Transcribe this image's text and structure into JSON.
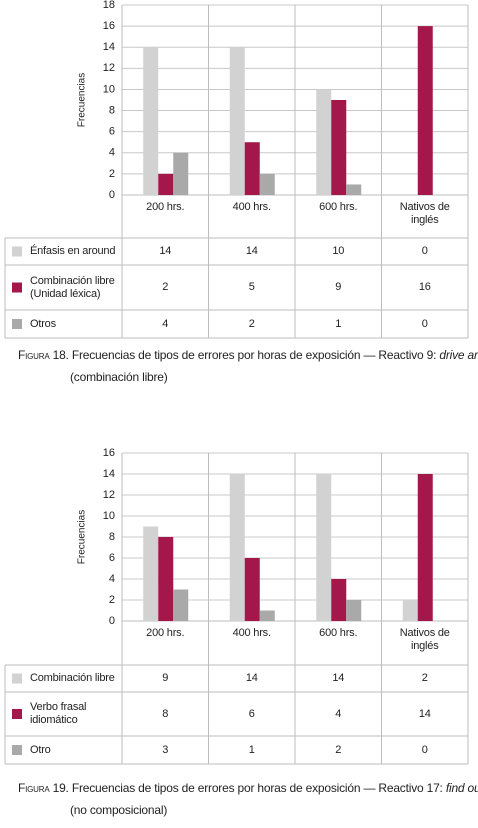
{
  "chart_data": [
    {
      "type": "bar",
      "y_label": "Frecuencias",
      "categories": [
        "200 hrs.",
        "400 hrs.",
        "600 hrs.",
        "Nativos de inglés"
      ],
      "series": [
        {
          "name": "Énfasis en around",
          "color": "#d2d2d2",
          "values": [
            14,
            14,
            10,
            0
          ]
        },
        {
          "name": "Combinación libre (Unidad léxica)",
          "color": "#a3174a",
          "values": [
            2,
            5,
            9,
            16
          ]
        },
        {
          "name": "Otros",
          "color": "#a9a9a9",
          "values": [
            4,
            2,
            1,
            0
          ]
        }
      ],
      "ylim": [
        0,
        18
      ],
      "yticks": [
        0,
        2,
        4,
        6,
        8,
        10,
        12,
        14,
        16,
        18
      ],
      "grid": true,
      "caption_label": "Figura 18.",
      "caption_text": "Frecuencias de tipos de errores por horas de exposición — Reactivo 9:",
      "caption_emph": "drive around",
      "caption_end": "(combinación libre)"
    },
    {
      "type": "bar",
      "y_label": "Frecuencias",
      "categories": [
        "200 hrs.",
        "400 hrs.",
        "600 hrs.",
        "Nativos de inglés"
      ],
      "series": [
        {
          "name": "Combinación libre",
          "color": "#d2d2d2",
          "values": [
            9,
            14,
            14,
            2
          ]
        },
        {
          "name": "Verbo frasal idiomático",
          "color": "#a3174a",
          "values": [
            8,
            6,
            4,
            14
          ]
        },
        {
          "name": "Otro",
          "color": "#a9a9a9",
          "values": [
            3,
            1,
            2,
            0
          ]
        }
      ],
      "ylim": [
        0,
        16
      ],
      "yticks": [
        0,
        2,
        4,
        6,
        8,
        10,
        12,
        14,
        16
      ],
      "grid": true,
      "caption_label": "Figura 19.",
      "caption_text": "Frecuencias de tipos de errores por horas de exposición — Reactivo 17:",
      "caption_emph": "find out",
      "caption_end": "(no composicional)"
    }
  ]
}
